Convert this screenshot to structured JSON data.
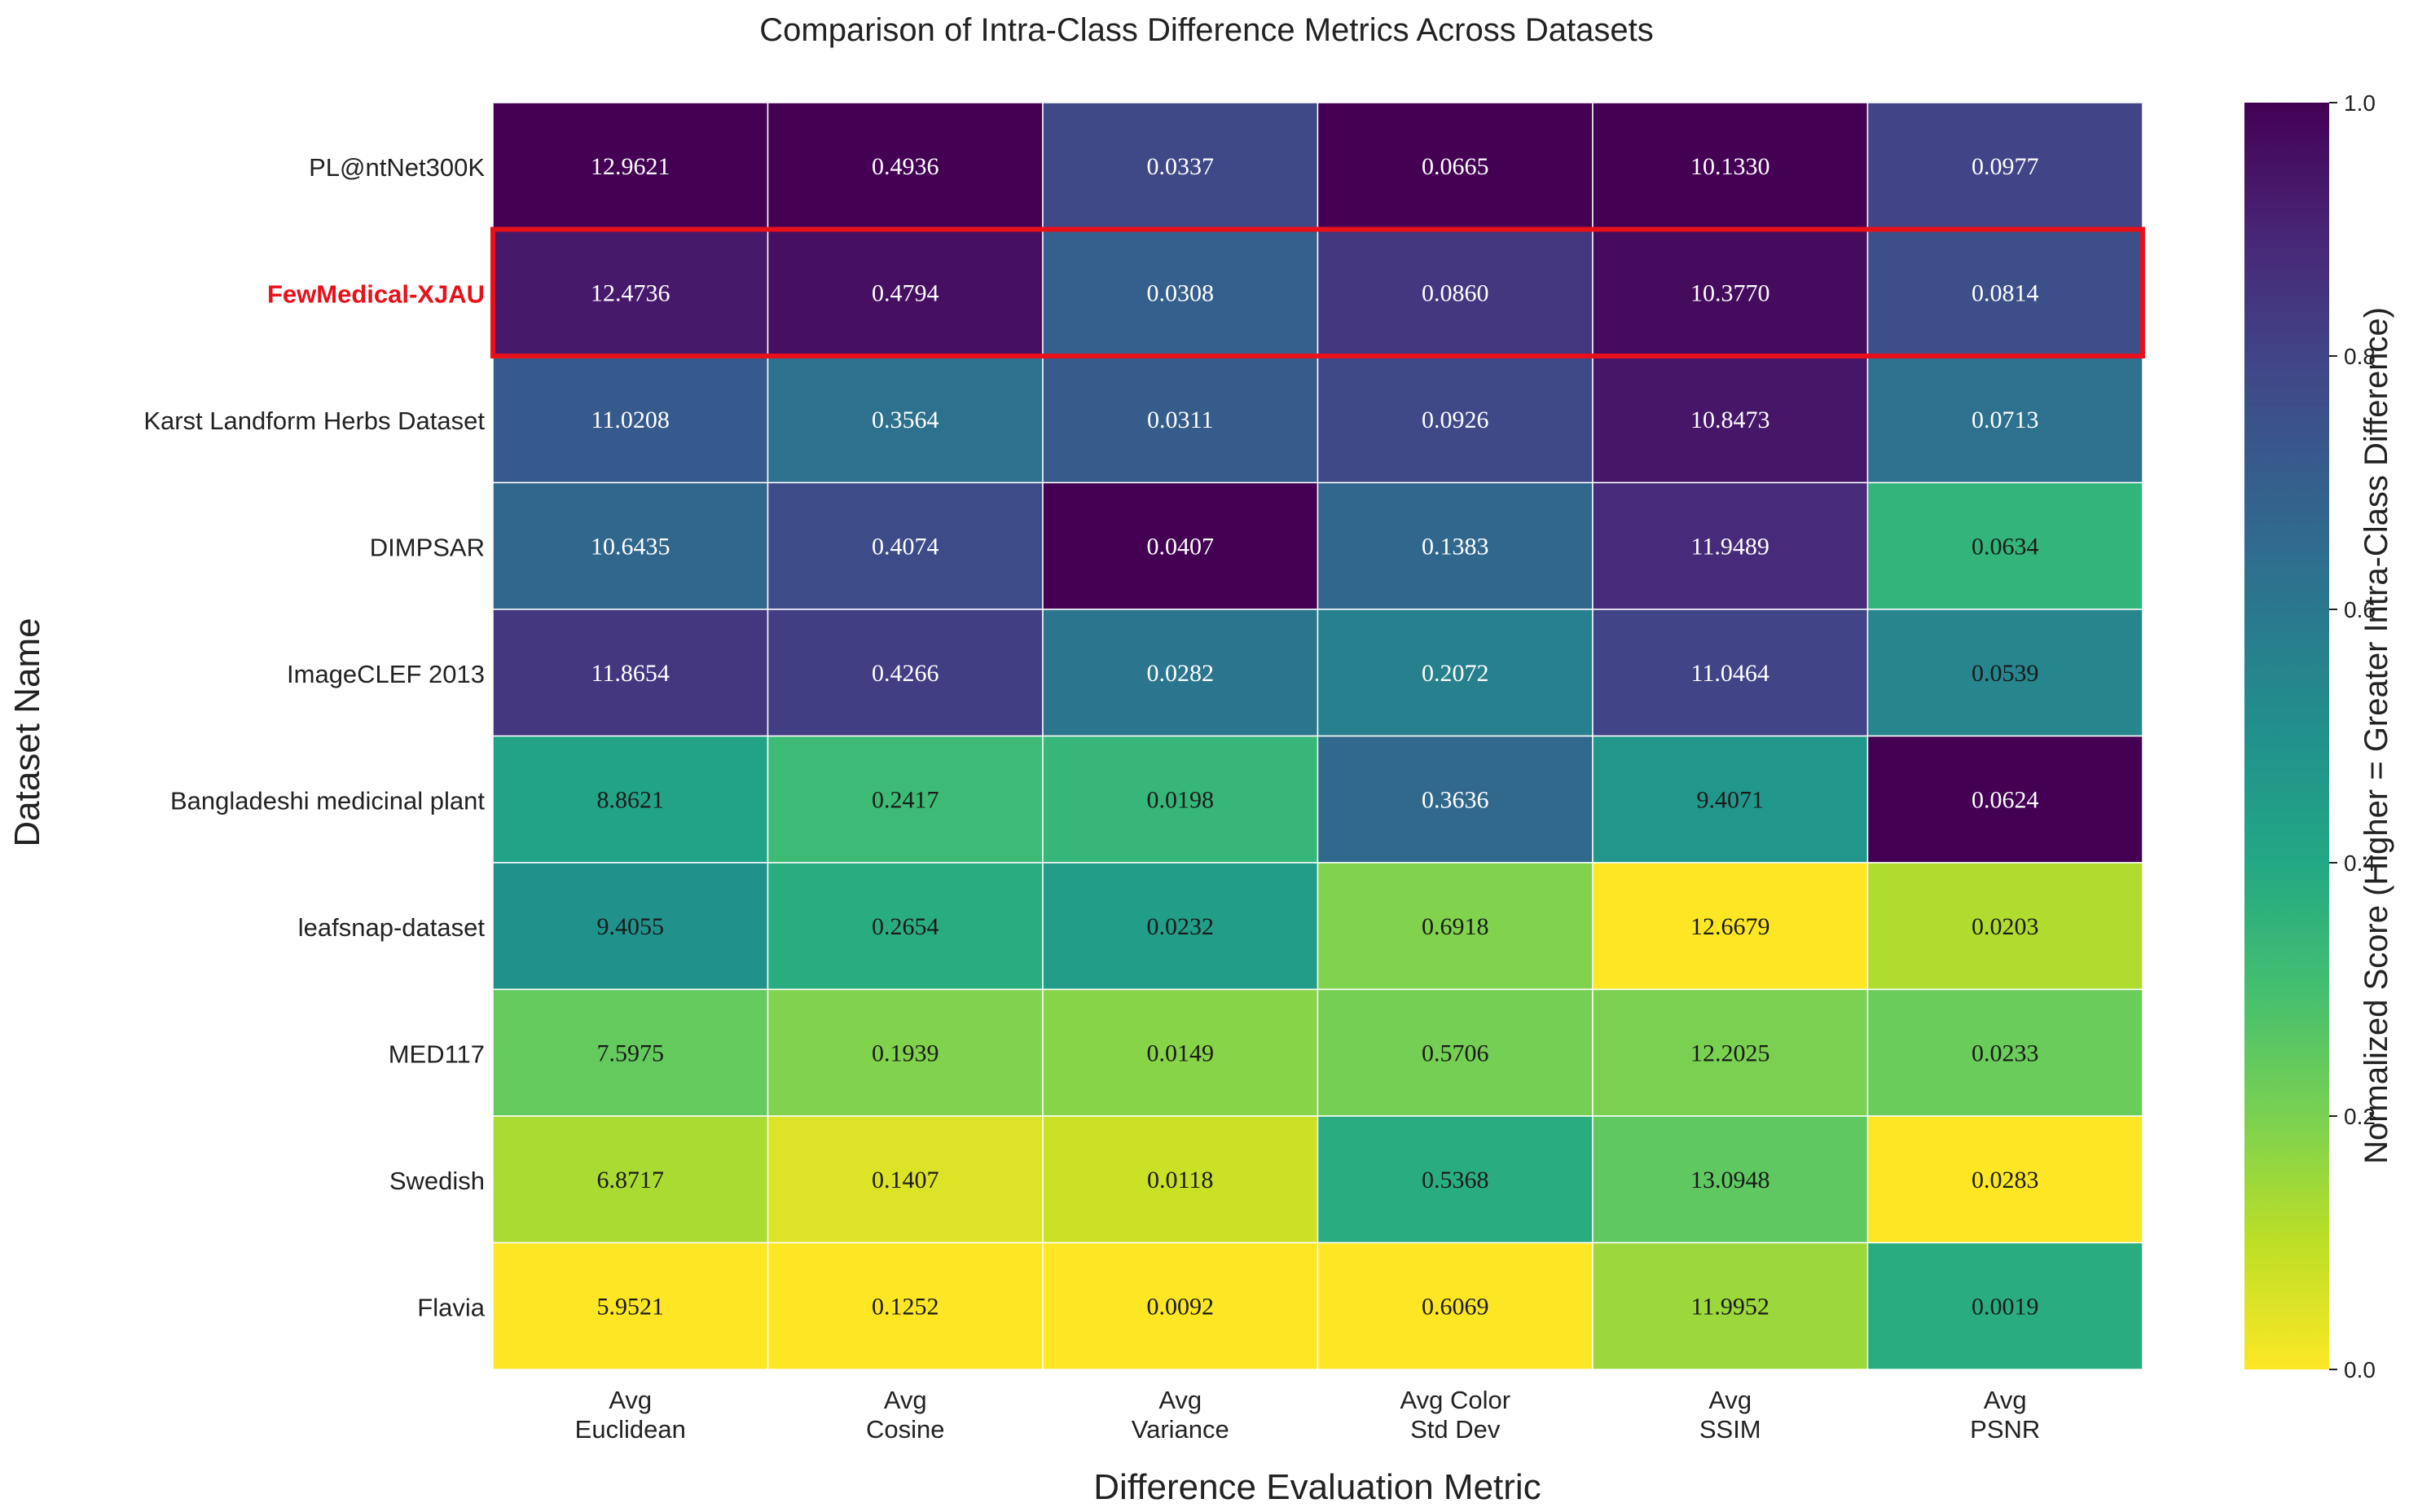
{
  "chart_data": {
    "type": "heatmap",
    "title": "Comparison of Intra-Class Difference Metrics Across Datasets",
    "xlabel": "Difference Evaluation Metric",
    "ylabel": "Dataset Name",
    "columns": [
      [
        "Avg",
        "Euclidean"
      ],
      [
        "Avg",
        "Cosine"
      ],
      [
        "Avg",
        "Variance"
      ],
      [
        "Avg Color",
        "Std Dev"
      ],
      [
        "Avg",
        "SSIM"
      ],
      [
        "Avg",
        "PSNR"
      ]
    ],
    "rows": [
      "PL@ntNet300K",
      "FewMedical-XJAU",
      "Karst Landform Herbs Dataset",
      "DIMPSAR",
      "ImageCLEF 2013",
      "Bangladeshi medicinal plant",
      "leafsnap-dataset",
      "MED117",
      "Swedish",
      "Flavia"
    ],
    "highlight_row": "FewMedical-XJAU",
    "highlight_color": "#e8111a",
    "cell_labels": [
      [
        "12.9621",
        "0.4936",
        "0.0337",
        "0.0665",
        "10.1330",
        "0.0977"
      ],
      [
        "12.4736",
        "0.4794",
        "0.0308",
        "0.0860",
        "10.3770",
        "0.0814"
      ],
      [
        "11.0208",
        "0.3564",
        "0.0311",
        "0.0926",
        "10.8473",
        "0.0713"
      ],
      [
        "10.6435",
        "0.4074",
        "0.0407",
        "0.1383",
        "11.9489",
        "0.0634"
      ],
      [
        "11.8654",
        "0.4266",
        "0.0282",
        "0.2072",
        "11.0464",
        "0.0539"
      ],
      [
        "8.8621",
        "0.2417",
        "0.0198",
        "0.3636",
        "9.4071",
        "0.0624"
      ],
      [
        "9.4055",
        "0.2654",
        "0.0232",
        "0.6918",
        "12.6679",
        "0.0203"
      ],
      [
        "7.5975",
        "0.1939",
        "0.0149",
        "0.5706",
        "12.2025",
        "0.0233"
      ],
      [
        "6.8717",
        "0.1407",
        "0.0118",
        "0.5368",
        "13.0948",
        "0.0283"
      ],
      [
        "5.9521",
        "0.1252",
        "0.0092",
        "0.6069",
        "11.9952",
        "0.0019"
      ]
    ],
    "normalized_scores": [
      [
        1.0,
        1.0,
        0.78,
        1.0,
        1.0,
        0.8
      ],
      [
        0.93,
        0.96,
        0.7,
        0.84,
        0.97,
        0.76
      ],
      [
        0.72,
        0.63,
        0.71,
        0.78,
        0.94,
        0.63
      ],
      [
        0.67,
        0.77,
        1.0,
        0.67,
        0.88,
        0.35
      ],
      [
        0.84,
        0.82,
        0.61,
        0.57,
        0.8,
        0.55
      ],
      [
        0.42,
        0.32,
        0.34,
        0.66,
        0.48,
        1.0
      ],
      [
        0.5,
        0.38,
        0.45,
        0.19,
        0.0,
        0.12
      ],
      [
        0.24,
        0.19,
        0.18,
        0.21,
        0.2,
        0.23
      ],
      [
        0.13,
        0.05,
        0.08,
        0.38,
        0.25,
        0.0
      ],
      [
        0.0,
        0.0,
        0.0,
        0.0,
        0.15,
        0.38
      ]
    ],
    "colormap": "viridis_r",
    "colorbar": {
      "label": "Normalized Score (Higher = Greater Intra-Class Difference)",
      "range": [
        0,
        1
      ],
      "ticks": [
        "0.0",
        "0.2",
        "0.4",
        "0.6",
        "0.8",
        "1.0"
      ]
    }
  }
}
